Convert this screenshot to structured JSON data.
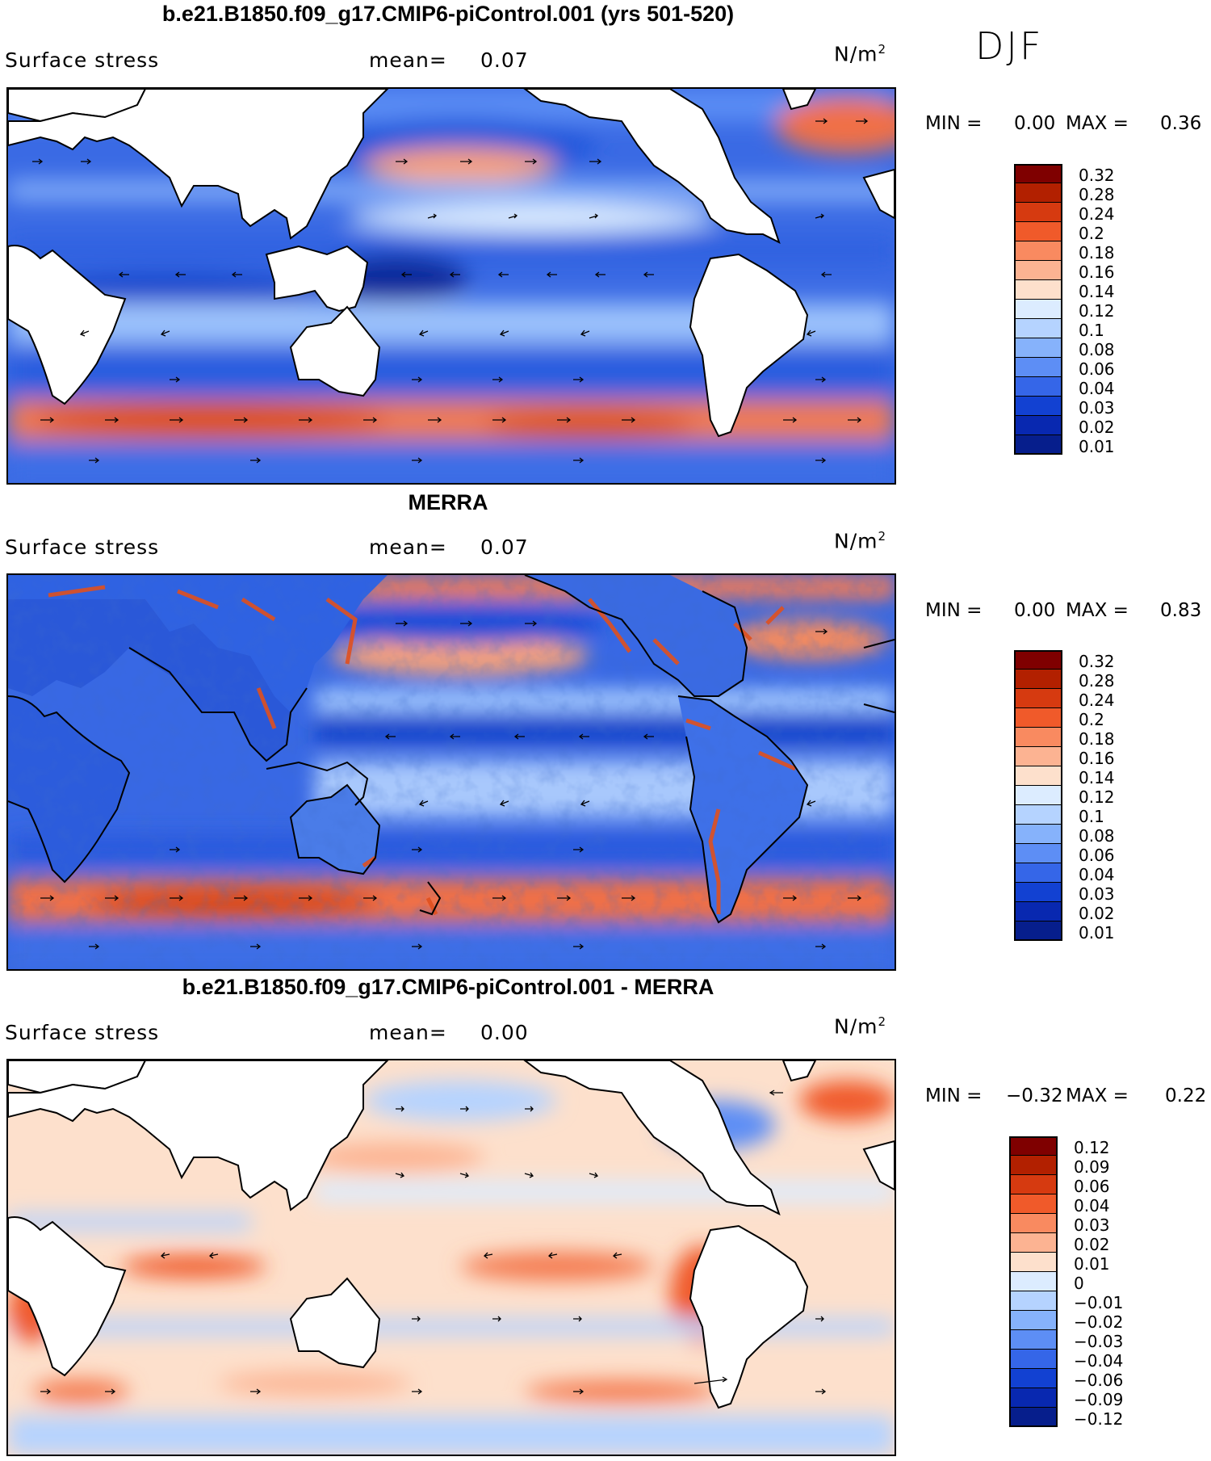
{
  "season": "DJF",
  "panels": [
    {
      "title": "b.e21.B1850.f09_g17.CMIP6-piControl.001 (yrs 501-520)",
      "variable": "Surface stress",
      "mean_label": "mean=",
      "mean_value": "0.07",
      "units_base": "N/m",
      "units_exp": "2",
      "min_label": "MIN =",
      "min_value": "0.00",
      "max_label": "MAX =",
      "max_value": "0.36",
      "colorbar": {
        "colors": [
          "#7f0000",
          "#b22000",
          "#d63a10",
          "#f05a2a",
          "#f98a60",
          "#fcb392",
          "#fde0cc",
          "#dcecff",
          "#b5d3ff",
          "#86b2fb",
          "#5d8ef5",
          "#3566e8",
          "#1241d2",
          "#0828b0",
          "#061e8c"
        ],
        "tick_labels": [
          "0.32",
          "0.28",
          "0.24",
          "0.2",
          "0.18",
          "0.16",
          "0.14",
          "0.12",
          "0.1",
          "0.08",
          "0.06",
          "0.04",
          "0.03",
          "0.02",
          "0.01"
        ]
      }
    },
    {
      "title": "MERRA",
      "variable": "Surface stress",
      "mean_label": "mean=",
      "mean_value": "0.07",
      "units_base": "N/m",
      "units_exp": "2",
      "min_label": "MIN =",
      "min_value": "0.00",
      "max_label": "MAX =",
      "max_value": "0.83",
      "colorbar": {
        "colors": [
          "#7f0000",
          "#b22000",
          "#d63a10",
          "#f05a2a",
          "#f98a60",
          "#fcb392",
          "#fde0cc",
          "#dcecff",
          "#b5d3ff",
          "#86b2fb",
          "#5d8ef5",
          "#3566e8",
          "#1241d2",
          "#0828b0",
          "#061e8c"
        ],
        "tick_labels": [
          "0.32",
          "0.28",
          "0.24",
          "0.2",
          "0.18",
          "0.16",
          "0.14",
          "0.12",
          "0.1",
          "0.08",
          "0.06",
          "0.04",
          "0.03",
          "0.02",
          "0.01"
        ]
      }
    },
    {
      "title": "b.e21.B1850.f09_g17.CMIP6-piControl.001 - MERRA",
      "variable": "Surface stress",
      "mean_label": "mean=",
      "mean_value": "0.00",
      "units_base": "N/m",
      "units_exp": "2",
      "min_label": "MIN =",
      "min_value": "−0.32",
      "max_label": "MAX =",
      "max_value": "0.22",
      "colorbar": {
        "colors": [
          "#7f0000",
          "#b22000",
          "#d63a10",
          "#f05a2a",
          "#f98a60",
          "#fcb392",
          "#fde0cc",
          "#dcecff",
          "#b5d3ff",
          "#86b2fb",
          "#5d8ef5",
          "#3566e8",
          "#1241d2",
          "#0828b0",
          "#061e8c"
        ],
        "tick_labels": [
          "0.12",
          "0.09",
          "0.06",
          "0.04",
          "0.03",
          "0.02",
          "0.01",
          "0",
          "−0.01",
          "−0.02",
          "−0.03",
          "−0.04",
          "−0.06",
          "−0.09",
          "−0.12"
        ]
      }
    }
  ]
}
